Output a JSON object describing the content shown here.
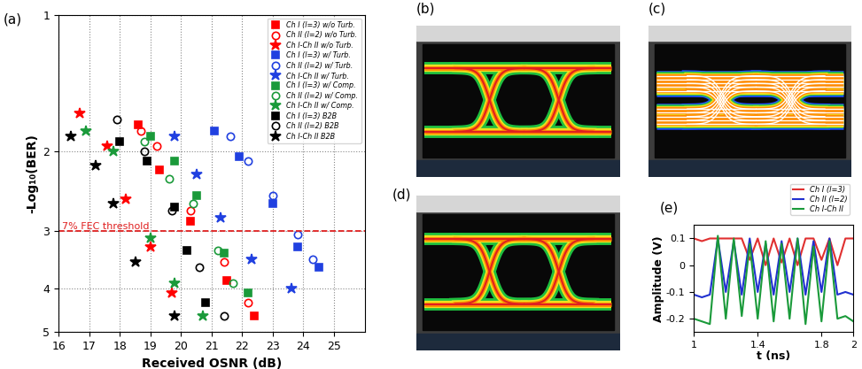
{
  "chart_data": [
    {
      "type": "scatter",
      "panel_label": "(a)",
      "x_label": "Received OSNR (dB)",
      "y_label": "-Log₁₀(BER)",
      "log": "y",
      "grid": true,
      "legend": "upper right",
      "xlim": [
        16,
        26
      ],
      "xticks": [
        16,
        17,
        18,
        19,
        20,
        21,
        22,
        23,
        24,
        25
      ],
      "ylim": [
        5,
        1
      ],
      "yticks": [
        1,
        2,
        3,
        4,
        5
      ],
      "threshold": {
        "value": 3,
        "label": "7% FEC threshold",
        "color": "#e02020"
      },
      "series": [
        {
          "name": "Ch I (l=3) w/o Turb.",
          "color": "#ff0000",
          "marker": "square",
          "x": [
            18.6,
            19.3,
            20.3,
            21.5,
            22.4
          ],
          "values": [
            1.75,
            2.2,
            2.85,
            3.85,
            4.6
          ]
        },
        {
          "name": "Ch II (l=2) w/o Turb.",
          "color": "#ff0000",
          "marker": "open_circle",
          "x": [
            18.7,
            19.2,
            20.3,
            21.4,
            22.2
          ],
          "values": [
            1.8,
            1.95,
            2.7,
            3.5,
            4.3
          ]
        },
        {
          "name": "Ch I-Ch II w/o Turb.",
          "color": "#ff0000",
          "marker": "star",
          "x": [
            16.7,
            17.6,
            18.2,
            19.0,
            19.7
          ],
          "values": [
            1.65,
            1.95,
            2.55,
            3.25,
            4.1
          ]
        },
        {
          "name": "Ch I (l=3) w/ Turb.",
          "color": "#2040e0",
          "marker": "square",
          "x": [
            21.1,
            21.9,
            23.0,
            23.8,
            24.5
          ],
          "values": [
            1.8,
            2.05,
            2.6,
            3.25,
            3.6
          ]
        },
        {
          "name": "Ch II (l=2) w/ Turb.",
          "color": "#2040e0",
          "marker": "open_circle",
          "x": [
            21.6,
            22.2,
            23.0,
            23.8,
            24.3
          ],
          "values": [
            1.85,
            2.1,
            2.5,
            3.05,
            3.45
          ]
        },
        {
          "name": "Ch I-Ch II w/ Turb.",
          "color": "#2040e0",
          "marker": "star",
          "x": [
            19.8,
            20.5,
            21.3,
            22.3,
            23.6
          ],
          "values": [
            1.85,
            2.25,
            2.8,
            3.45,
            4.0
          ]
        },
        {
          "name": "Ch I (l=3) w/ Comp.",
          "color": "#1a9a3a",
          "marker": "square",
          "x": [
            19.0,
            19.8,
            20.5,
            21.4,
            22.2
          ],
          "values": [
            1.85,
            2.1,
            2.5,
            3.35,
            4.1
          ]
        },
        {
          "name": "Ch II (l=2) w/ Comp.",
          "color": "#1a9a3a",
          "marker": "open_circle",
          "x": [
            18.8,
            19.6,
            20.4,
            21.2,
            21.7
          ],
          "values": [
            1.9,
            2.3,
            2.6,
            3.3,
            3.9
          ]
        },
        {
          "name": "Ch I-Ch II w/ Comp.",
          "color": "#1a9a3a",
          "marker": "star",
          "x": [
            16.9,
            17.8,
            19.0,
            19.8,
            20.7
          ],
          "values": [
            1.8,
            2.0,
            3.1,
            3.9,
            4.6
          ]
        },
        {
          "name": "Ch I (l=3) B2B",
          "color": "#000000",
          "marker": "square",
          "x": [
            18.0,
            18.9,
            19.8,
            20.2,
            20.8
          ],
          "values": [
            1.9,
            2.1,
            2.65,
            3.3,
            4.3
          ]
        },
        {
          "name": "Ch II (l=2) B2B",
          "color": "#000000",
          "marker": "open_circle",
          "x": [
            17.9,
            18.8,
            19.7,
            20.6,
            21.4
          ],
          "values": [
            1.7,
            2.0,
            2.7,
            3.6,
            4.6
          ]
        },
        {
          "name": "Ch I-Ch II B2B",
          "color": "#000000",
          "marker": "star",
          "x": [
            16.4,
            17.2,
            17.8,
            18.5,
            19.8
          ],
          "values": [
            1.85,
            2.15,
            2.6,
            3.5,
            4.6
          ]
        }
      ]
    },
    {
      "type": "line",
      "panel_label": "(e)",
      "x_label": "t (ns)",
      "y_label": "Amplitude (V)",
      "legend": "upper right",
      "xlim": [
        1,
        2
      ],
      "xticks": [
        1,
        1.4,
        1.8,
        2
      ],
      "ylim": [
        -0.25,
        0.15
      ],
      "yticks": [
        -0.2,
        -0.1,
        0,
        0.1
      ],
      "x": [
        1.0,
        1.05,
        1.1,
        1.15,
        1.2,
        1.25,
        1.3,
        1.35,
        1.4,
        1.45,
        1.5,
        1.55,
        1.6,
        1.65,
        1.7,
        1.75,
        1.8,
        1.85,
        1.9,
        1.95,
        2.0
      ],
      "series": [
        {
          "name": "Ch I (l=3)",
          "color": "#e03030",
          "values": [
            0.1,
            0.09,
            0.1,
            0.1,
            0.1,
            0.1,
            0.1,
            0.02,
            0.1,
            0.0,
            0.1,
            0.01,
            0.1,
            0.0,
            0.1,
            0.1,
            0.02,
            0.1,
            0.0,
            0.1,
            0.1
          ]
        },
        {
          "name": "Ch II (l=2)",
          "color": "#2030d0",
          "values": [
            -0.11,
            -0.12,
            -0.11,
            0.1,
            -0.1,
            0.09,
            -0.11,
            0.1,
            -0.1,
            0.08,
            -0.11,
            0.09,
            -0.1,
            0.1,
            -0.11,
            0.09,
            -0.1,
            0.1,
            -0.11,
            -0.1,
            -0.11
          ]
        },
        {
          "name": "Ch I-Ch II",
          "color": "#1a9a3a",
          "values": [
            -0.2,
            -0.21,
            -0.22,
            0.11,
            -0.2,
            0.1,
            -0.19,
            0.08,
            -0.2,
            0.09,
            -0.21,
            0.08,
            -0.2,
            0.1,
            -0.22,
            0.07,
            -0.21,
            0.09,
            -0.2,
            -0.19,
            -0.21
          ]
        }
      ]
    }
  ],
  "images": [
    {
      "panel_label": "(b)",
      "type": "eye_open"
    },
    {
      "panel_label": "(c)",
      "type": "eye_closed"
    },
    {
      "panel_label": "(d)",
      "type": "eye_open"
    }
  ]
}
